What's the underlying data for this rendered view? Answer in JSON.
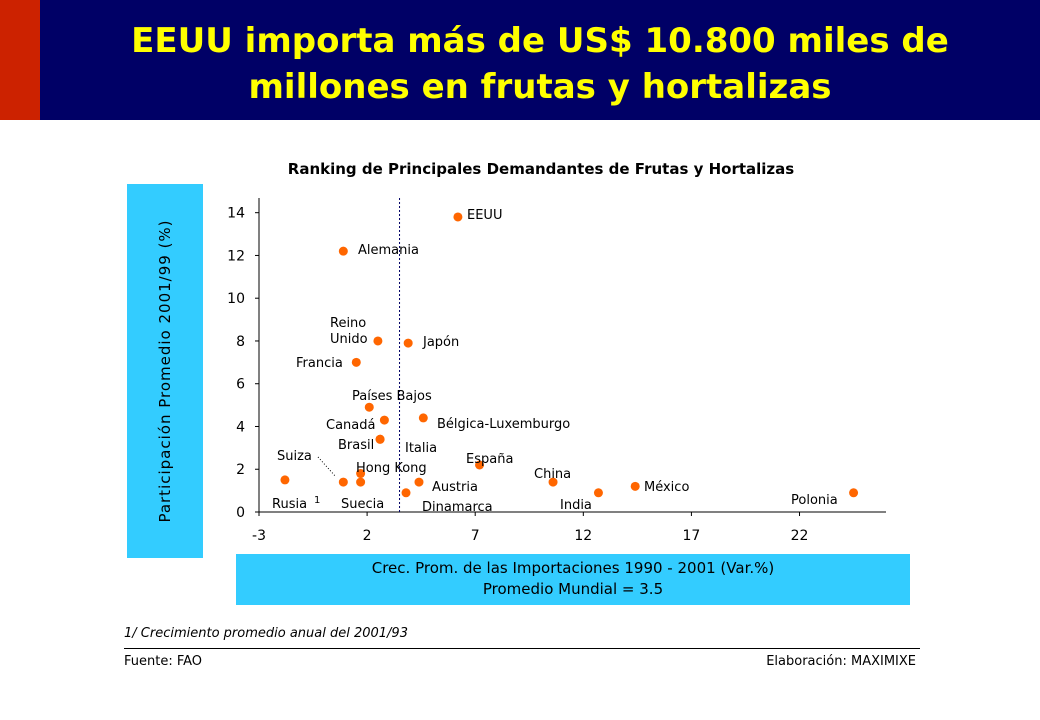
{
  "header": {
    "title_line1": "EEUU importa más de US$ 10.800 miles de",
    "title_line2": "millones en frutas y hortalizas",
    "background": "#000066",
    "accent": "#cc2200",
    "title_color": "#ffff00"
  },
  "chart_data": {
    "type": "scatter",
    "title": "Ranking de Principales Demandantes de Frutas y Hortalizas",
    "ylabel": "Participación Promedio 2001/99 (%)",
    "xlabel_line1": "Crec. Prom. de las Importaciones 1990 - 2001 (Var.%)",
    "xlabel_line2": "Promedio Mundial = 3.5",
    "xlim": [
      -3,
      26
    ],
    "ylim": [
      0,
      14.5
    ],
    "xticks": [
      "-3",
      "2",
      "7",
      "12",
      "17",
      "22"
    ],
    "yticks": [
      "0",
      "2",
      "4",
      "6",
      "8",
      "10",
      "12",
      "14"
    ],
    "reference_line_x": 3.5,
    "marker_color": "#ff6600",
    "points": [
      {
        "label": "EEUU",
        "x": 6.2,
        "y": 13.8
      },
      {
        "label": "Alemania",
        "x": 0.9,
        "y": 12.2
      },
      {
        "label": "Reino Unido",
        "x": 2.5,
        "y": 8.0
      },
      {
        "label": "Japón",
        "x": 3.9,
        "y": 7.9
      },
      {
        "label": "Francia",
        "x": 1.5,
        "y": 7.0
      },
      {
        "label": "Países Bajos",
        "x": 2.1,
        "y": 4.9
      },
      {
        "label": "Canadá",
        "x": 2.8,
        "y": 4.3
      },
      {
        "label": "Bélgica-Luxemburgo",
        "x": 4.6,
        "y": 4.4
      },
      {
        "label": "Brasil",
        "x": 2.6,
        "y": 3.4
      },
      {
        "label": "Italia",
        "x": 2.6,
        "y": 3.4
      },
      {
        "label": "España",
        "x": 7.2,
        "y": 2.2
      },
      {
        "label": "Suiza",
        "x": 0.9,
        "y": 1.4
      },
      {
        "label": "Hong Kong",
        "x": 1.7,
        "y": 1.8
      },
      {
        "label": "China",
        "x": 10.6,
        "y": 1.4
      },
      {
        "label": "México",
        "x": 14.4,
        "y": 1.2
      },
      {
        "label": "Rusia 1",
        "x": -1.8,
        "y": 1.5
      },
      {
        "label": "Suecia",
        "x": 1.7,
        "y": 1.4
      },
      {
        "label": "Austria",
        "x": 4.4,
        "y": 1.4
      },
      {
        "label": "Dinamarca",
        "x": 3.8,
        "y": 0.9
      },
      {
        "label": "India",
        "x": 12.7,
        "y": 0.9
      },
      {
        "label": "Polonia",
        "x": 24.5,
        "y": 0.9
      }
    ],
    "labels": [
      {
        "text": "EEUU",
        "anchor": "start",
        "lines": [
          "EEUU"
        ]
      },
      {
        "text": "Alemania",
        "anchor": "start",
        "lines": [
          "Alemania"
        ]
      },
      {
        "text": "Reino Unido",
        "anchor": "start",
        "lines": [
          "Reino",
          "Unido"
        ]
      },
      {
        "text": "Japón",
        "anchor": "start",
        "lines": [
          "Japón"
        ]
      },
      {
        "text": "Francia",
        "anchor": "start",
        "lines": [
          "Francia"
        ]
      },
      {
        "text": "Países Bajos",
        "anchor": "start",
        "lines": [
          "Países Bajos"
        ]
      },
      {
        "text": "Canadá",
        "anchor": "start",
        "lines": [
          "Canadá"
        ]
      },
      {
        "text": "Bélgica-Luxemburgo",
        "anchor": "start",
        "lines": [
          "Bélgica-Luxemburgo"
        ]
      },
      {
        "text": "Brasil",
        "anchor": "start",
        "lines": [
          "Brasil"
        ]
      },
      {
        "text": "Italia",
        "anchor": "start",
        "lines": [
          "Italia"
        ]
      },
      {
        "text": "España",
        "anchor": "start",
        "lines": [
          "España"
        ]
      },
      {
        "text": "Suiza",
        "anchor": "start",
        "lines": [
          "Suiza"
        ]
      },
      {
        "text": "Hong Kong",
        "anchor": "start",
        "lines": [
          "Hong Kong"
        ]
      },
      {
        "text": "China",
        "anchor": "start",
        "lines": [
          "China"
        ]
      },
      {
        "text": "México",
        "anchor": "start",
        "lines": [
          "México"
        ]
      },
      {
        "text": "Rusia",
        "anchor": "start",
        "lines": [
          "Rusia"
        ]
      },
      {
        "text": "1",
        "anchor": "start",
        "lines": [
          "1"
        ]
      },
      {
        "text": "Suecia",
        "anchor": "start",
        "lines": [
          "Suecia"
        ]
      },
      {
        "text": "Austria",
        "anchor": "start",
        "lines": [
          "Austria"
        ]
      },
      {
        "text": "Dinamarca",
        "anchor": "start",
        "lines": [
          "Dinamarca"
        ]
      },
      {
        "text": "India",
        "anchor": "start",
        "lines": [
          "India"
        ]
      },
      {
        "text": "Polonia",
        "anchor": "start",
        "lines": [
          "Polonia"
        ]
      }
    ]
  },
  "footer": {
    "note": "1/ Crecimiento promedio anual del 2001/93",
    "source": "Fuente: FAO",
    "credit": "Elaboración: MAXIMIXE"
  }
}
